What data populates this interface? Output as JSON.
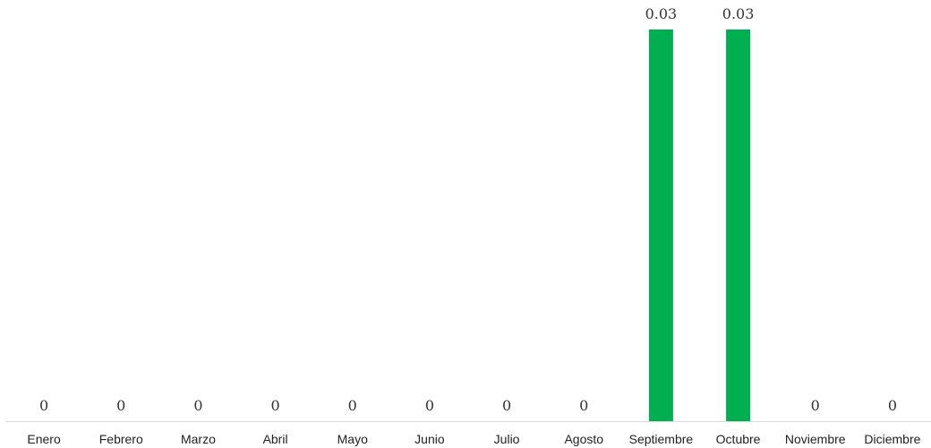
{
  "chart_data": {
    "type": "bar",
    "categories": [
      "Enero",
      "Febrero",
      "Marzo",
      "Abril",
      "Mayo",
      "Junio",
      "Julio",
      "Agosto",
      "Septiembre",
      "Octubre",
      "Noviembre",
      "Diciembre"
    ],
    "values": [
      0,
      0,
      0,
      0,
      0,
      0,
      0,
      0,
      0.03,
      0.03,
      0,
      0
    ],
    "data_labels": [
      "0",
      "0",
      "0",
      "0",
      "0",
      "0",
      "0",
      "0",
      "0.03",
      "0.03",
      "0",
      "0"
    ],
    "title": "",
    "xlabel": "",
    "ylabel": "",
    "ylim": [
      0,
      0.03
    ],
    "grid": false,
    "legend": "none",
    "bar_color": "#00B050",
    "axis_color": "#D9D9D9"
  }
}
